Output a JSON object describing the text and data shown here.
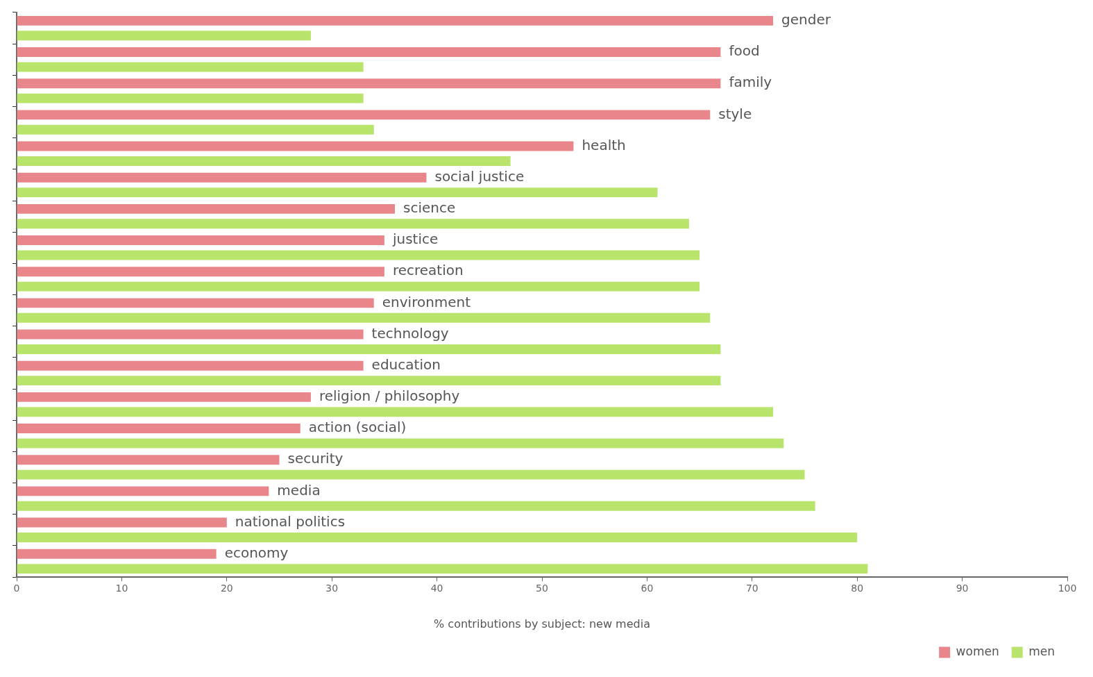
{
  "chart_data": {
    "type": "bar",
    "orientation": "horizontal",
    "xlabel": "% contributions by subject: new media",
    "categories": [
      "gender",
      "food",
      "family",
      "style",
      "health",
      "social justice",
      "science",
      "justice",
      "recreation",
      "environment",
      "technology",
      "education",
      "religion / philosophy",
      "action (social)",
      "security",
      "media",
      "national politics",
      "economy"
    ],
    "series": [
      {
        "name": "women",
        "color": "#e8868c",
        "values": [
          72,
          67,
          67,
          66,
          53,
          39,
          36,
          35,
          35,
          34,
          33,
          33,
          28,
          27,
          25,
          24,
          20,
          19
        ]
      },
      {
        "name": "men",
        "color": "#b8e46c",
        "values": [
          28,
          33,
          33,
          34,
          47,
          61,
          64,
          65,
          65,
          66,
          67,
          67,
          72,
          73,
          75,
          76,
          80,
          81
        ]
      }
    ],
    "xlim": [
      0,
      100
    ],
    "xticks": [
      0,
      10,
      20,
      30,
      40,
      50,
      60,
      70,
      80,
      90,
      100
    ],
    "grid": false,
    "legend": "bottom right",
    "tick_labels": "x"
  }
}
